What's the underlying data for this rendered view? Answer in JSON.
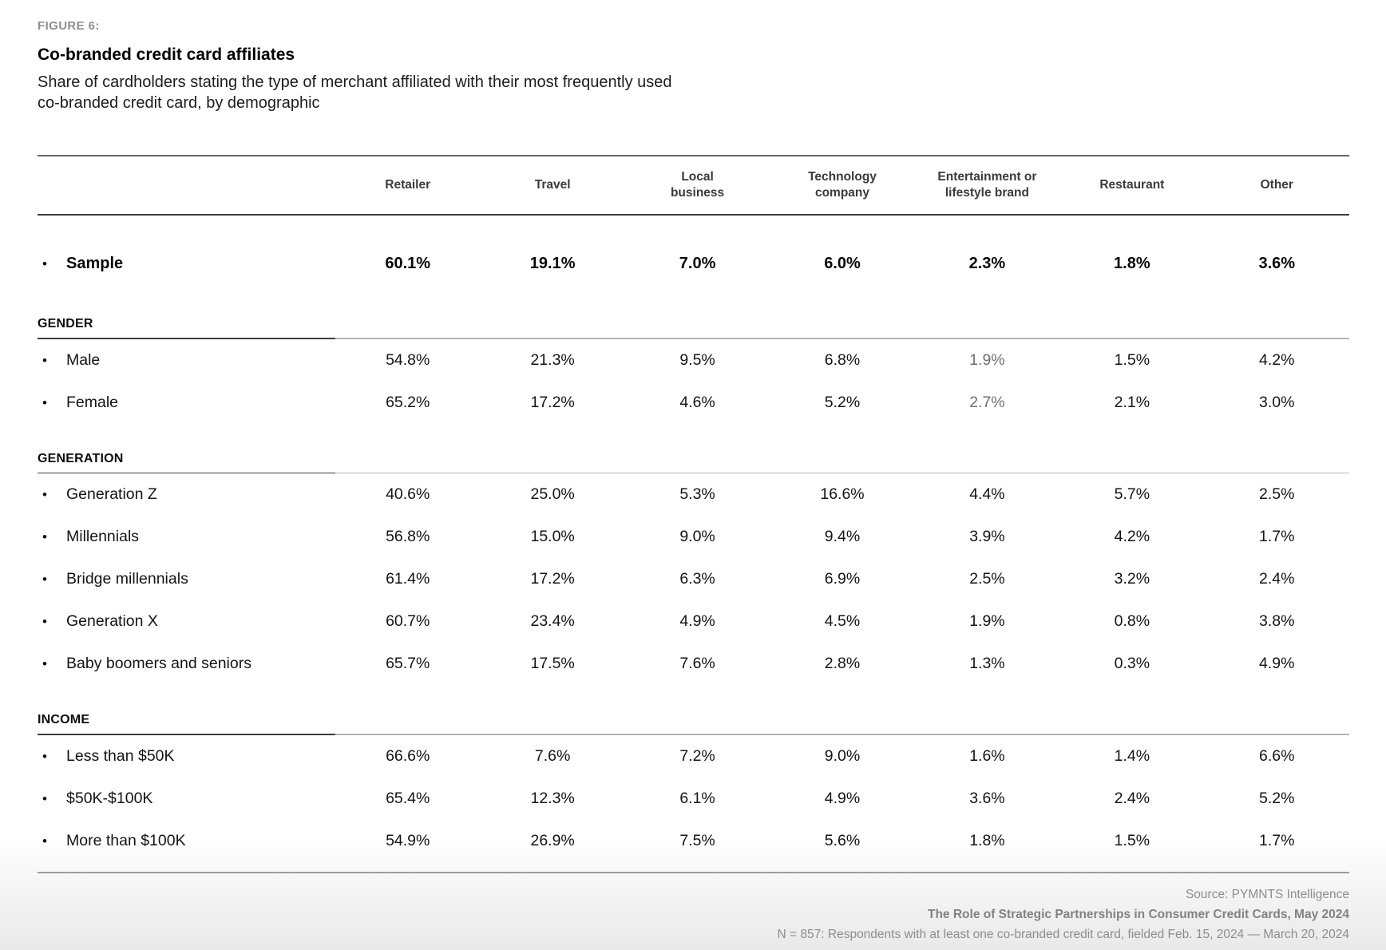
{
  "figure": {
    "label": "FIGURE 6:",
    "title": "Co-branded credit card affiliates",
    "subtitle_lines": [
      "Share of cardholders stating the type of merchant affiliated with their most frequently used",
      "co-branded credit card, by demographic"
    ]
  },
  "table": {
    "columns_display": [
      "Retailer",
      "Travel",
      "Local\nbusiness",
      "Technology\ncompany",
      "Entertainment or\nlifestyle brand",
      "Restaurant",
      "Other"
    ],
    "bullet_glyph": "•",
    "value_suffix": "%"
  },
  "chart_data": {
    "type": "table",
    "title": "Co-branded credit card affiliates",
    "subtitle": "Share of cardholders stating the type of merchant affiliated with their most frequently used co-branded credit card, by demographic",
    "columns": [
      "Retailer",
      "Travel",
      "Local business",
      "Technology company",
      "Entertainment or lifestyle brand",
      "Restaurant",
      "Other"
    ],
    "unit": "percent",
    "sample": {
      "label": "Sample",
      "values": [
        60.1,
        19.1,
        7.0,
        6.0,
        2.3,
        1.8,
        3.6
      ]
    },
    "sections": [
      {
        "name": "GENDER",
        "rows": [
          {
            "label": "Male",
            "values": [
              54.8,
              21.3,
              9.5,
              6.8,
              1.9,
              1.5,
              4.2
            ],
            "muted": [
              4
            ]
          },
          {
            "label": "Female",
            "values": [
              65.2,
              17.2,
              4.6,
              5.2,
              2.7,
              2.1,
              3.0
            ],
            "muted": [
              4
            ]
          }
        ]
      },
      {
        "name": "GENERATION",
        "rows": [
          {
            "label": "Generation Z",
            "values": [
              40.6,
              25.0,
              5.3,
              16.6,
              4.4,
              5.7,
              2.5
            ],
            "muted": []
          },
          {
            "label": "Millennials",
            "values": [
              56.8,
              15.0,
              9.0,
              9.4,
              3.9,
              4.2,
              1.7
            ],
            "muted": []
          },
          {
            "label": "Bridge millennials",
            "values": [
              61.4,
              17.2,
              6.3,
              6.9,
              2.5,
              3.2,
              2.4
            ],
            "muted": []
          },
          {
            "label": "Generation X",
            "values": [
              60.7,
              23.4,
              4.9,
              4.5,
              1.9,
              0.8,
              3.8
            ],
            "muted": []
          },
          {
            "label": "Baby boomers and seniors",
            "values": [
              65.7,
              17.5,
              7.6,
              2.8,
              1.3,
              0.3,
              4.9
            ],
            "muted": []
          }
        ]
      },
      {
        "name": "INCOME",
        "rows": [
          {
            "label": "Less than $50K",
            "values": [
              66.6,
              7.6,
              7.2,
              9.0,
              1.6,
              1.4,
              6.6
            ],
            "muted": []
          },
          {
            "label": "$50K-$100K",
            "values": [
              65.4,
              12.3,
              6.1,
              4.9,
              3.6,
              2.4,
              5.2
            ],
            "muted": []
          },
          {
            "label": "More than $100K",
            "values": [
              54.9,
              26.9,
              7.5,
              5.6,
              1.8,
              1.5,
              1.7
            ],
            "muted": []
          }
        ]
      }
    ]
  },
  "footer": {
    "source": "Source: PYMNTS Intelligence",
    "report": "The Role of Strategic Partnerships in Consumer Credit Cards, May 2024",
    "note": "N = 857: Respondents with at least one co-branded credit card, fielded Feb. 15, 2024 — March 20, 2024"
  },
  "colors": {
    "text": "#141414",
    "muted_value": "#6f6f6f",
    "figure_label_gray": "#8f8f8f",
    "footer_gray": "#8d8d8d",
    "rule_dark": "#3d3d3d",
    "rule_light": "#b5b5b5"
  }
}
